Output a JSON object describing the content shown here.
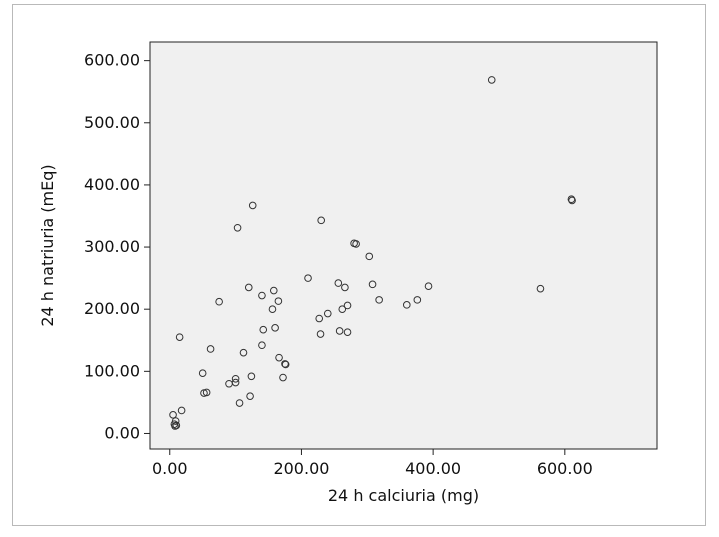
{
  "chart_data": {
    "type": "scatter",
    "title": "",
    "xlabel": "24 h calciuria (mg)",
    "ylabel": "24 h natriuria (mEq)",
    "xlim": [
      -30,
      740
    ],
    "ylim": [
      -25,
      630
    ],
    "xticks": [
      0,
      200,
      400,
      600
    ],
    "xtick_labels": [
      "0.00",
      "200.00",
      "400.00",
      "600.00"
    ],
    "yticks": [
      0,
      100,
      200,
      300,
      400,
      500,
      600
    ],
    "ytick_labels": [
      "0.00",
      "100.00",
      "200.00",
      "300.00",
      "400.00",
      "500.00",
      "600.00"
    ],
    "grid": false,
    "plot_background": "#f0f0f0",
    "marker": "open-circle",
    "marker_color": "#333333",
    "points": [
      {
        "x": 5,
        "y": 30
      },
      {
        "x": 7,
        "y": 15
      },
      {
        "x": 8,
        "y": 12
      },
      {
        "x": 9,
        "y": 20
      },
      {
        "x": 10,
        "y": 13
      },
      {
        "x": 18,
        "y": 37
      },
      {
        "x": 15,
        "y": 155
      },
      {
        "x": 50,
        "y": 97
      },
      {
        "x": 52,
        "y": 65
      },
      {
        "x": 56,
        "y": 66
      },
      {
        "x": 62,
        "y": 136
      },
      {
        "x": 75,
        "y": 212
      },
      {
        "x": 90,
        "y": 80
      },
      {
        "x": 100,
        "y": 82
      },
      {
        "x": 100,
        "y": 88
      },
      {
        "x": 103,
        "y": 331
      },
      {
        "x": 106,
        "y": 49
      },
      {
        "x": 112,
        "y": 130
      },
      {
        "x": 120,
        "y": 235
      },
      {
        "x": 122,
        "y": 60
      },
      {
        "x": 124,
        "y": 92
      },
      {
        "x": 126,
        "y": 367
      },
      {
        "x": 140,
        "y": 222
      },
      {
        "x": 140,
        "y": 142
      },
      {
        "x": 142,
        "y": 167
      },
      {
        "x": 156,
        "y": 200
      },
      {
        "x": 158,
        "y": 230
      },
      {
        "x": 160,
        "y": 170
      },
      {
        "x": 165,
        "y": 213
      },
      {
        "x": 166,
        "y": 122
      },
      {
        "x": 172,
        "y": 90
      },
      {
        "x": 175,
        "y": 112
      },
      {
        "x": 176,
        "y": 111
      },
      {
        "x": 210,
        "y": 250
      },
      {
        "x": 227,
        "y": 185
      },
      {
        "x": 229,
        "y": 160
      },
      {
        "x": 230,
        "y": 343
      },
      {
        "x": 240,
        "y": 193
      },
      {
        "x": 256,
        "y": 242
      },
      {
        "x": 258,
        "y": 165
      },
      {
        "x": 262,
        "y": 200
      },
      {
        "x": 266,
        "y": 235
      },
      {
        "x": 270,
        "y": 163
      },
      {
        "x": 270,
        "y": 206
      },
      {
        "x": 280,
        "y": 306
      },
      {
        "x": 283,
        "y": 305
      },
      {
        "x": 303,
        "y": 285
      },
      {
        "x": 308,
        "y": 240
      },
      {
        "x": 318,
        "y": 215
      },
      {
        "x": 360,
        "y": 207
      },
      {
        "x": 376,
        "y": 215
      },
      {
        "x": 393,
        "y": 237
      },
      {
        "x": 489,
        "y": 569
      },
      {
        "x": 563,
        "y": 233
      },
      {
        "x": 610,
        "y": 377
      },
      {
        "x": 611,
        "y": 375
      }
    ]
  }
}
